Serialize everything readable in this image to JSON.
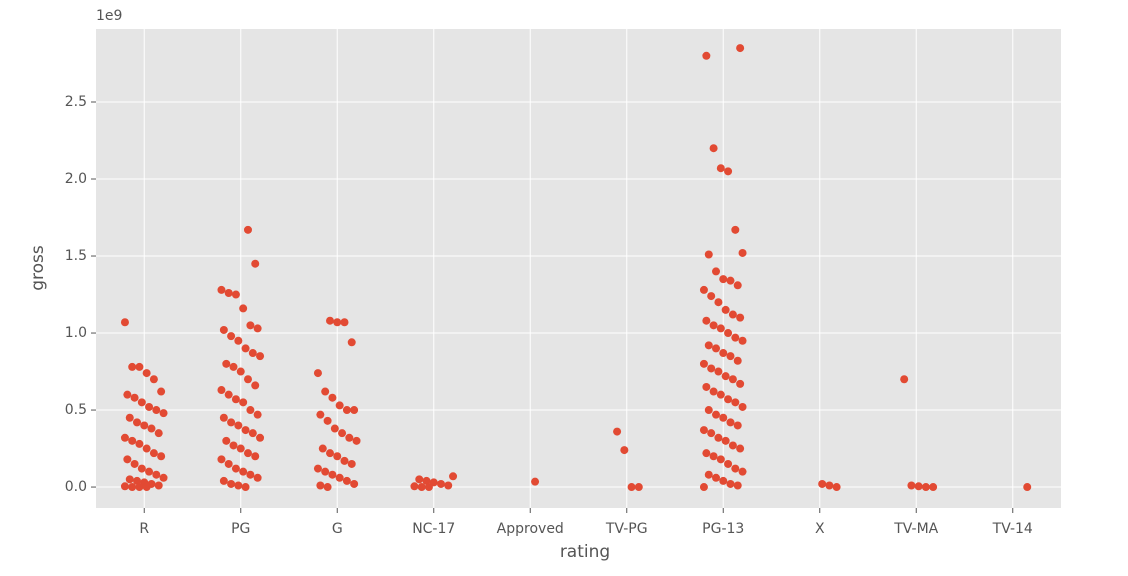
{
  "chart_data": {
    "type": "strip",
    "xlabel": "rating",
    "ylabel": "gross",
    "y_offset_label": "1e9",
    "categories": [
      "R",
      "PG",
      "G",
      "NC-17",
      "Approved",
      "TV-PG",
      "PG-13",
      "X",
      "TV-MA",
      "TV-14"
    ],
    "values": [
      [
        1.07,
        0.78,
        0.78,
        0.74,
        0.7,
        0.62,
        0.6,
        0.58,
        0.55,
        0.52,
        0.5,
        0.48,
        0.45,
        0.42,
        0.4,
        0.38,
        0.35,
        0.32,
        0.3,
        0.28,
        0.25,
        0.22,
        0.2,
        0.18,
        0.15,
        0.12,
        0.1,
        0.08,
        0.06,
        0.05,
        0.04,
        0.03,
        0.02,
        0.01,
        0.005,
        0,
        0,
        0
      ],
      [
        1.67,
        1.45,
        1.28,
        1.26,
        1.25,
        1.16,
        1.05,
        1.03,
        1.02,
        0.98,
        0.95,
        0.9,
        0.87,
        0.85,
        0.8,
        0.78,
        0.75,
        0.7,
        0.66,
        0.63,
        0.6,
        0.57,
        0.55,
        0.5,
        0.47,
        0.45,
        0.42,
        0.4,
        0.37,
        0.35,
        0.32,
        0.3,
        0.27,
        0.25,
        0.22,
        0.2,
        0.18,
        0.15,
        0.12,
        0.1,
        0.08,
        0.06,
        0.04,
        0.02,
        0.01,
        0
      ],
      [
        1.08,
        1.07,
        1.07,
        0.94,
        0.74,
        0.62,
        0.58,
        0.53,
        0.5,
        0.5,
        0.47,
        0.43,
        0.38,
        0.35,
        0.32,
        0.3,
        0.25,
        0.22,
        0.2,
        0.17,
        0.15,
        0.12,
        0.1,
        0.08,
        0.06,
        0.04,
        0.02,
        0.01,
        0
      ],
      [
        0.07,
        0.05,
        0.04,
        0.03,
        0.02,
        0.01,
        0.005,
        0,
        0
      ],
      [
        0.035
      ],
      [
        0.36,
        0.24,
        0,
        0
      ],
      [
        2.85,
        2.8,
        2.2,
        2.07,
        2.05,
        1.67,
        1.52,
        1.51,
        1.4,
        1.35,
        1.34,
        1.31,
        1.28,
        1.24,
        1.2,
        1.15,
        1.12,
        1.1,
        1.08,
        1.05,
        1.03,
        1.0,
        0.97,
        0.95,
        0.92,
        0.9,
        0.87,
        0.85,
        0.82,
        0.8,
        0.77,
        0.75,
        0.72,
        0.7,
        0.67,
        0.65,
        0.62,
        0.6,
        0.57,
        0.55,
        0.52,
        0.5,
        0.47,
        0.45,
        0.42,
        0.4,
        0.37,
        0.35,
        0.32,
        0.3,
        0.27,
        0.25,
        0.22,
        0.2,
        0.18,
        0.15,
        0.12,
        0.1,
        0.08,
        0.06,
        0.04,
        0.02,
        0.01,
        0
      ],
      [
        0.02,
        0.01,
        0
      ],
      [
        0.7,
        0.01,
        0.005,
        0,
        0
      ],
      [
        0
      ]
    ],
    "color": "#e24a33",
    "ylim": [
      -0.136,
      2.974
    ],
    "yticks": [
      {
        "value": 0,
        "label": "0.0"
      },
      0.5,
      {
        "value": 1,
        "label": "1.0"
      },
      1.5,
      {
        "value": 2,
        "label": "2.0"
      },
      2.5
    ],
    "grid": true
  }
}
